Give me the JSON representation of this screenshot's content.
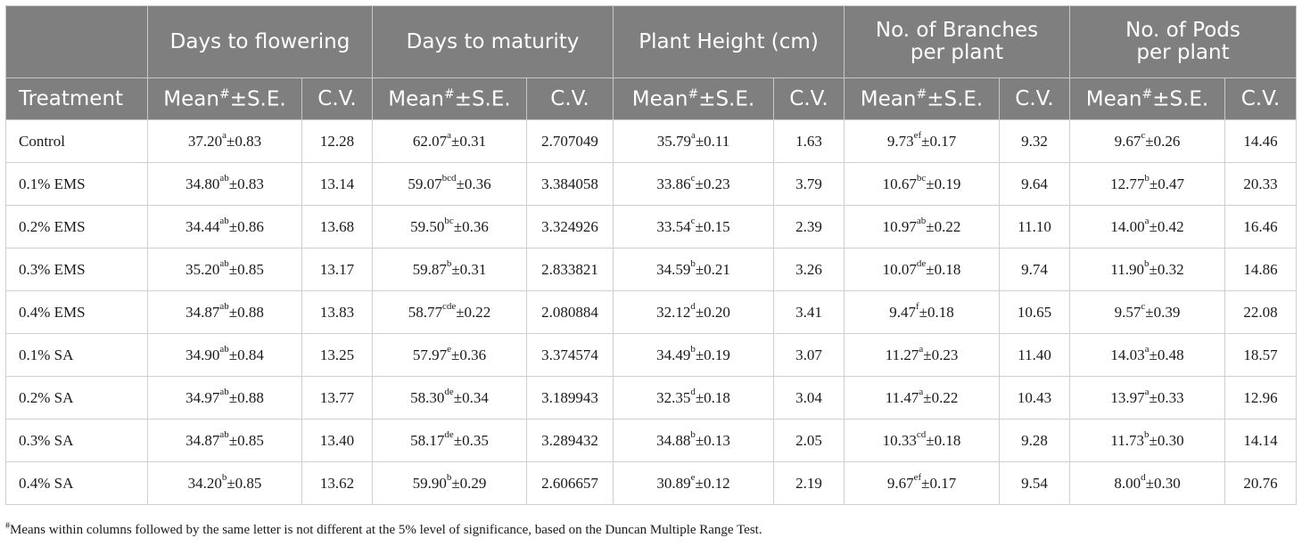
{
  "header": {
    "groups": [
      {
        "lines": [
          "Days to flowering"
        ]
      },
      {
        "lines": [
          "Days to maturity"
        ]
      },
      {
        "lines": [
          "Plant Height (cm)"
        ]
      },
      {
        "lines": [
          "No. of Branches",
          "per plant"
        ]
      },
      {
        "lines": [
          "No. of Pods",
          "per plant"
        ]
      }
    ],
    "treatment_label": "Treatment",
    "mean_label": "Mean",
    "mean_mark": "#",
    "se_label": "±S.E.",
    "cv_label": "C.V."
  },
  "rows": [
    {
      "treatment": "Control",
      "cells": [
        {
          "mean": "37.20",
          "letters": "a",
          "se": "0.83",
          "cv": "12.28"
        },
        {
          "mean": "62.07",
          "letters": "a",
          "se": "0.31",
          "cv": "2.707049"
        },
        {
          "mean": "35.79",
          "letters": "a",
          "se": "0.11",
          "cv": "1.63"
        },
        {
          "mean": "9.73",
          "letters": "ef",
          "se": "0.17",
          "cv": "9.32"
        },
        {
          "mean": "9.67",
          "letters": "c",
          "se": "0.26",
          "cv": "14.46"
        }
      ]
    },
    {
      "treatment": "0.1% EMS",
      "cells": [
        {
          "mean": "34.80",
          "letters": "ab",
          "se": "0.83",
          "cv": "13.14"
        },
        {
          "mean": "59.07",
          "letters": "bcd",
          "se": "0.36",
          "cv": "3.384058"
        },
        {
          "mean": "33.86",
          "letters": "c",
          "se": "0.23",
          "cv": "3.79"
        },
        {
          "mean": "10.67",
          "letters": "bc",
          "se": "0.19",
          "cv": "9.64"
        },
        {
          "mean": "12.77",
          "letters": "b",
          "se": "0.47",
          "cv": "20.33"
        }
      ]
    },
    {
      "treatment": "0.2% EMS",
      "cells": [
        {
          "mean": "34.44",
          "letters": "ab",
          "se": "0.86",
          "cv": "13.68"
        },
        {
          "mean": "59.50",
          "letters": "bc",
          "se": "0.36",
          "cv": "3.324926"
        },
        {
          "mean": "33.54",
          "letters": "c",
          "se": "0.15",
          "cv": "2.39"
        },
        {
          "mean": "10.97",
          "letters": "ab",
          "se": "0.22",
          "cv": "11.10"
        },
        {
          "mean": "14.00",
          "letters": "a",
          "se": "0.42",
          "cv": "16.46"
        }
      ]
    },
    {
      "treatment": "0.3% EMS",
      "cells": [
        {
          "mean": "35.20",
          "letters": "ab",
          "se": "0.85",
          "cv": "13.17"
        },
        {
          "mean": "59.87",
          "letters": "b",
          "se": "0.31",
          "cv": "2.833821"
        },
        {
          "mean": "34.59",
          "letters": "b",
          "se": "0.21",
          "cv": "3.26"
        },
        {
          "mean": "10.07",
          "letters": "de",
          "se": "0.18",
          "cv": "9.74"
        },
        {
          "mean": "11.90",
          "letters": "b",
          "se": "0.32",
          "cv": "14.86"
        }
      ]
    },
    {
      "treatment": "0.4% EMS",
      "cells": [
        {
          "mean": "34.87",
          "letters": "ab",
          "se": "0.88",
          "cv": "13.83"
        },
        {
          "mean": "58.77",
          "letters": "cde",
          "se": "0.22",
          "cv": "2.080884"
        },
        {
          "mean": "32.12",
          "letters": "d",
          "se": "0.20",
          "cv": "3.41"
        },
        {
          "mean": "9.47",
          "letters": "f",
          "se": "0.18",
          "cv": "10.65"
        },
        {
          "mean": "9.57",
          "letters": "c",
          "se": "0.39",
          "cv": "22.08"
        }
      ]
    },
    {
      "treatment": "0.1% SA",
      "cells": [
        {
          "mean": "34.90",
          "letters": "ab",
          "se": "0.84",
          "cv": "13.25"
        },
        {
          "mean": "57.97",
          "letters": "e",
          "se": "0.36",
          "cv": "3.374574"
        },
        {
          "mean": "34.49",
          "letters": "b",
          "se": "0.19",
          "cv": "3.07"
        },
        {
          "mean": "11.27",
          "letters": "a",
          "se": "0.23",
          "cv": "11.40"
        },
        {
          "mean": "14.03",
          "letters": "a",
          "se": "0.48",
          "cv": "18.57"
        }
      ]
    },
    {
      "treatment": "0.2% SA",
      "cells": [
        {
          "mean": "34.97",
          "letters": "ab",
          "se": "0.88",
          "cv": "13.77"
        },
        {
          "mean": "58.30",
          "letters": "de",
          "se": "0.34",
          "cv": "3.189943"
        },
        {
          "mean": "32.35",
          "letters": "d",
          "se": "0.18",
          "cv": "3.04"
        },
        {
          "mean": "11.47",
          "letters": "a",
          "se": "0.22",
          "cv": "10.43"
        },
        {
          "mean": "13.97",
          "letters": "a",
          "se": "0.33",
          "cv": "12.96"
        }
      ]
    },
    {
      "treatment": "0.3% SA",
      "cells": [
        {
          "mean": "34.87",
          "letters": "ab",
          "se": "0.85",
          "cv": "13.40"
        },
        {
          "mean": "58.17",
          "letters": "de",
          "se": "0.35",
          "cv": "3.289432"
        },
        {
          "mean": "34.88",
          "letters": "b",
          "se": "0.13",
          "cv": "2.05"
        },
        {
          "mean": "10.33",
          "letters": "cd",
          "se": "0.18",
          "cv": "9.28"
        },
        {
          "mean": "11.73",
          "letters": "b",
          "se": "0.30",
          "cv": "14.14"
        }
      ]
    },
    {
      "treatment": "0.4% SA",
      "cells": [
        {
          "mean": "34.20",
          "letters": "b",
          "se": "0.85",
          "cv": "13.62"
        },
        {
          "mean": "59.90",
          "letters": "b",
          "se": "0.29",
          "cv": "2.606657"
        },
        {
          "mean": "30.89",
          "letters": "e",
          "se": "0.12",
          "cv": "2.19"
        },
        {
          "mean": "9.67",
          "letters": "ef",
          "se": "0.17",
          "cv": "9.54"
        },
        {
          "mean": "8.00",
          "letters": "d",
          "se": "0.30",
          "cv": "20.76"
        }
      ]
    }
  ],
  "footnote": {
    "mark": "#",
    "text": "Means within columns followed by the same letter is not different at the 5% level of significance, based on the Duncan Multiple Range Test."
  },
  "colors": {
    "header_background": "#7f7f7f",
    "header_text": "#ffffff",
    "grid_line": "#cfcfcf"
  }
}
